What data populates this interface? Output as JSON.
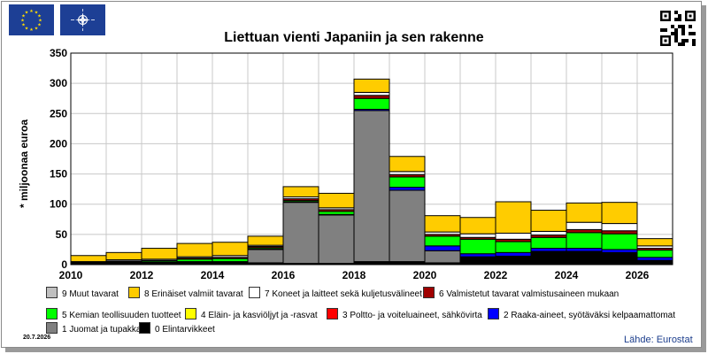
{
  "title": "Liettuan vienti Japaniin ja sen rakenne",
  "ylabel": "* miljoonaa euroa",
  "date": "20.7.2026",
  "source": "Lähde: Eurostat",
  "flags": [
    "eu-flag-icon",
    "nato-flag-icon"
  ],
  "chart_data": {
    "type": "bar",
    "stacked": true,
    "title": "Liettuan vienti Japaniin ja sen rakenne",
    "ylabel": "* miljoonaa euroa",
    "xlabel": "",
    "ylim": [
      0,
      350
    ],
    "yticks": [
      0,
      50,
      100,
      150,
      200,
      250,
      300,
      350
    ],
    "grid": true,
    "x_tick_labels": [
      "2010",
      "2012",
      "2014",
      "2016",
      "2018",
      "2020",
      "2022",
      "2024",
      "2026"
    ],
    "categories": [
      "2010",
      "2011",
      "2012",
      "2013",
      "2014",
      "2015",
      "2016",
      "2017",
      "2018",
      "2019",
      "2020",
      "2021",
      "2022",
      "2023",
      "2024",
      "2025",
      "2026"
    ],
    "series": [
      {
        "name": "0 Elintarvikkeet",
        "color": "#000000",
        "values": [
          2,
          4,
          4,
          5,
          5,
          3,
          2,
          2,
          5,
          5,
          3,
          13,
          14,
          22,
          22,
          20,
          7
        ]
      },
      {
        "name": "1 Juomat ja tupakka",
        "color": "#808080",
        "values": [
          0,
          0,
          0,
          0,
          0,
          22,
          101,
          80,
          250,
          118,
          20,
          0,
          0,
          0,
          0,
          0,
          0
        ]
      },
      {
        "name": "2 Raaka-aineet, syötäväksi kelpaamattomat",
        "color": "#0000ff",
        "values": [
          0,
          0,
          0,
          0,
          0,
          1,
          1,
          1,
          2,
          5,
          8,
          5,
          6,
          5,
          5,
          5,
          5
        ]
      },
      {
        "name": "3 Poltto- ja voiteluaineet, sähkövirta",
        "color": "#ff0000",
        "values": [
          0,
          0,
          0,
          0,
          0,
          0,
          0,
          0,
          0,
          0,
          0,
          0,
          0,
          0,
          0,
          0,
          0
        ]
      },
      {
        "name": "4 Eläin- ja kasviöljyt ja -rasvat",
        "color": "#ffff00",
        "values": [
          0,
          0,
          0,
          0,
          0,
          0,
          0,
          0,
          0,
          0,
          0,
          0,
          0,
          0,
          0,
          0,
          0
        ]
      },
      {
        "name": "5 Kemian teollisuuden tuotteet",
        "color": "#00ff00",
        "values": [
          1,
          1,
          2,
          4,
          5,
          2,
          2,
          5,
          18,
          17,
          16,
          24,
          18,
          18,
          26,
          26,
          12
        ]
      },
      {
        "name": "6 Valmistetut tavarat valmistusaineen mukaan",
        "color": "#a00000",
        "values": [
          1,
          1,
          1,
          2,
          2,
          2,
          3,
          3,
          5,
          4,
          3,
          3,
          4,
          4,
          5,
          5,
          3
        ]
      },
      {
        "name": "7 Koneet ja laitteet sekä kuljetusvälineet",
        "color": "#ffffff",
        "values": [
          1,
          2,
          2,
          2,
          3,
          2,
          3,
          3,
          5,
          5,
          4,
          6,
          10,
          6,
          12,
          12,
          4
        ]
      },
      {
        "name": "8 Erinäiset valmiit tavarat",
        "color": "#ffcc00",
        "values": [
          10,
          12,
          18,
          22,
          22,
          15,
          17,
          24,
          22,
          25,
          27,
          27,
          52,
          35,
          32,
          35,
          12
        ]
      },
      {
        "name": "9 Muut tavarat",
        "color": "#c0c0c0",
        "values": [
          0,
          0,
          0,
          0,
          0,
          0,
          0,
          0,
          0,
          0,
          0,
          0,
          0,
          0,
          0,
          0,
          0
        ]
      }
    ],
    "legend_position": "bottom"
  },
  "legend": [
    {
      "label": "9 Muut tavarat",
      "color": "#c0c0c0"
    },
    {
      "label": "8 Erinäiset valmiit tavarat",
      "color": "#ffcc00"
    },
    {
      "label": "7 Koneet ja laitteet sekä kuljetusvälineet",
      "color": "#ffffff"
    },
    {
      "label": "6 Valmistetut tavarat valmistusaineen mukaan",
      "color": "#a00000"
    },
    {
      "label": "5 Kemian teollisuuden tuotteet",
      "color": "#00ff00"
    },
    {
      "label": "4 Eläin- ja kasviöljyt ja -rasvat",
      "color": "#ffff00"
    },
    {
      "label": "3 Poltto- ja voiteluaineet, sähkövirta",
      "color": "#ff0000"
    },
    {
      "label": "2 Raaka-aineet, syötäväksi kelpaamattomat",
      "color": "#0000ff"
    },
    {
      "label": "1 Juomat ja tupakka",
      "color": "#808080"
    },
    {
      "label": "0 Elintarvikkeet",
      "color": "#000000"
    }
  ]
}
